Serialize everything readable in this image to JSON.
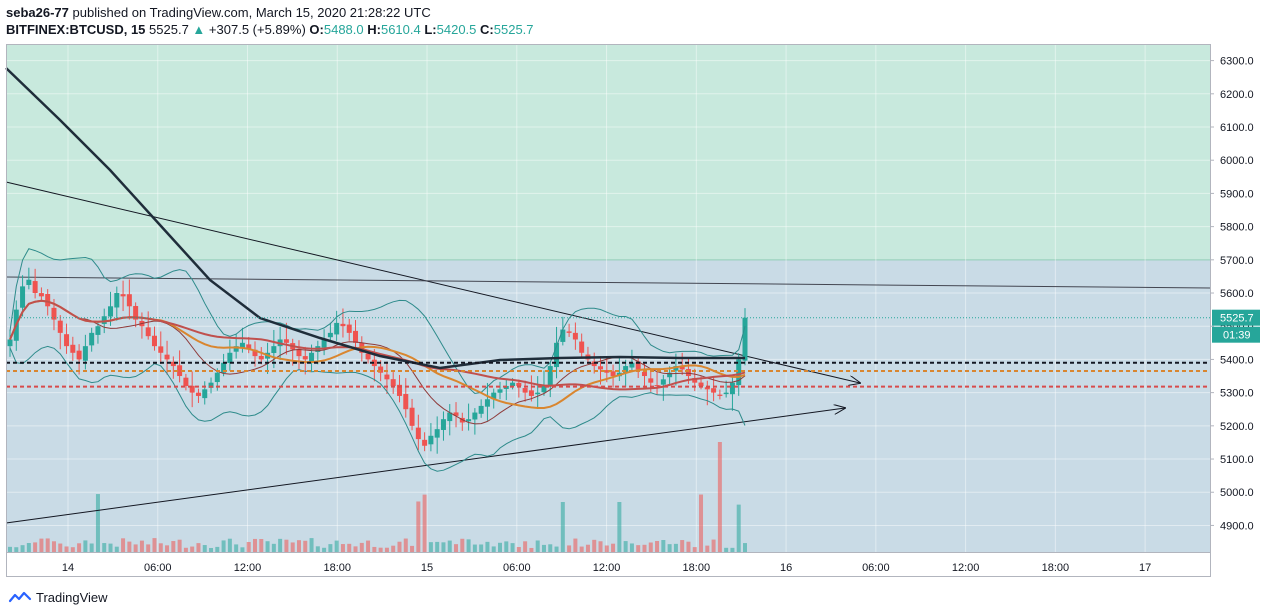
{
  "header": {
    "author": "seba26-77",
    "published_text": "published on TradingView.com, March 15, 2020 21:28:22 UTC",
    "symbol": "BITFINEX:BTCUSD, 15",
    "last_price": "5525.7",
    "change_arrow": "▲",
    "change": "+307.5 (+5.89%)",
    "open_label": "O:",
    "open": "5488.0",
    "high_label": "H:",
    "high": "5610.4",
    "low_label": "L:",
    "low": "5420.5",
    "close_label": "C:",
    "close": "5525.7"
  },
  "price_tag": {
    "price": "5525.7",
    "countdown": "01:39"
  },
  "footer": {
    "brand": "TradingView"
  },
  "colors": {
    "up": "#26a69a",
    "down": "#ef5350",
    "zone_top": "#c8e9dd",
    "zone_main": "#c9dbe6",
    "ma_dark": "#1f2d3a",
    "ma_red": "#c0504d",
    "ma_orange": "#d9862f",
    "bb": "#2e8b8b"
  },
  "chart_data": {
    "type": "candlestick",
    "title": "BITFINEX:BTCUSD, 15",
    "ylim": [
      4820,
      6350
    ],
    "y_ticks": [
      "6300.0",
      "6200.0",
      "6100.0",
      "6000.0",
      "5900.0",
      "5800.0",
      "5700.0",
      "5600.0",
      "5500.0",
      "5400.0",
      "5300.0",
      "5200.0",
      "5100.0",
      "5000.0",
      "4900.0"
    ],
    "x_ticks": [
      {
        "label": "14",
        "h": -2
      },
      {
        "label": "06:00",
        "h": 4
      },
      {
        "label": "12:00",
        "h": 10
      },
      {
        "label": "18:00",
        "h": 16
      },
      {
        "label": "15",
        "h": 22
      },
      {
        "label": "06:00",
        "h": 28
      },
      {
        "label": "12:00",
        "h": 34
      },
      {
        "label": "18:00",
        "h": 40
      },
      {
        "label": "16",
        "h": 46
      },
      {
        "label": "06:00",
        "h": 52
      },
      {
        "label": "12:00",
        "h": 58
      },
      {
        "label": "18:00",
        "h": 64
      },
      {
        "label": "17",
        "h": 70
      }
    ],
    "candles_close": [
      5460,
      5550,
      5620,
      5640,
      5600,
      5590,
      5560,
      5520,
      5480,
      5440,
      5420,
      5400,
      5440,
      5480,
      5500,
      5530,
      5560,
      5600,
      5590,
      5560,
      5520,
      5500,
      5470,
      5440,
      5420,
      5400,
      5380,
      5350,
      5320,
      5300,
      5290,
      5310,
      5330,
      5360,
      5390,
      5420,
      5440,
      5450,
      5430,
      5410,
      5400,
      5420,
      5440,
      5460,
      5450,
      5430,
      5410,
      5400,
      5420,
      5440,
      5460,
      5480,
      5510,
      5500,
      5480,
      5450,
      5420,
      5400,
      5380,
      5360,
      5340,
      5320,
      5290,
      5250,
      5200,
      5160,
      5140,
      5170,
      5190,
      5220,
      5240,
      5230,
      5210,
      5220,
      5240,
      5260,
      5280,
      5300,
      5310,
      5320,
      5330,
      5320,
      5300,
      5290,
      5300,
      5320,
      5380,
      5450,
      5490,
      5480,
      5460,
      5420,
      5400,
      5380,
      5370,
      5360,
      5350,
      5360,
      5380,
      5390,
      5370,
      5350,
      5330,
      5320,
      5340,
      5360,
      5380,
      5370,
      5350,
      5330,
      5320,
      5310,
      5300,
      5290,
      5300,
      5330,
      5400,
      5525.7
    ],
    "horizontal_levels": [
      {
        "name": "black-dashed",
        "price": 5390
      },
      {
        "name": "orange-dashed",
        "price": 5365
      },
      {
        "name": "red-dashed",
        "price": 5318
      },
      {
        "name": "last-price-dotted",
        "price": 5525.7
      }
    ],
    "zones": [
      {
        "name": "upper-green",
        "from": 5700,
        "to": 6350
      },
      {
        "name": "lower-blue",
        "from": 4820,
        "to": 5700
      }
    ],
    "volume_scale": "relative"
  }
}
